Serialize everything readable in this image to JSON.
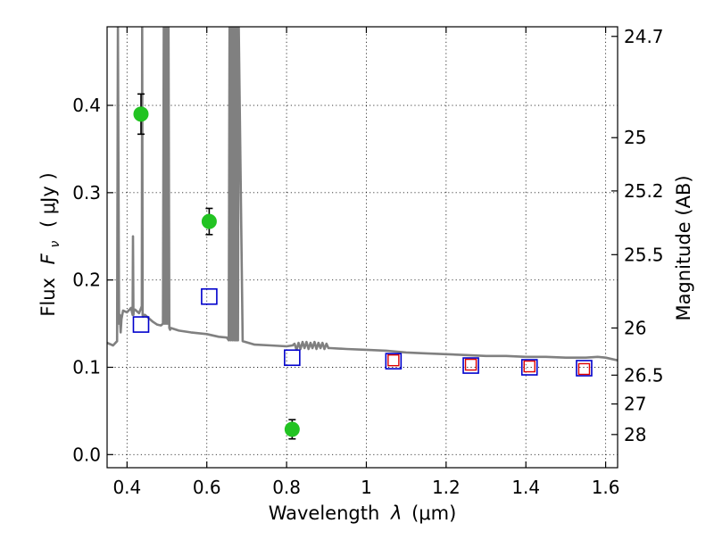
{
  "chart_data": {
    "type": "scatter",
    "xlabel_text": "Wavelength",
    "xlabel_symbol": "λ",
    "xlabel_unit": "(μm)",
    "ylabel_text": "Flux",
    "ylabel_symbol": "F",
    "ylabel_sub": "ν",
    "ylabel_unit": "( μJy )",
    "ylabel_right": "Magnitude (AB)",
    "xlim": [
      0.35,
      1.63
    ],
    "ylim": [
      -0.015,
      0.49
    ],
    "x_ticks": [
      0.4,
      0.6,
      0.8,
      1.0,
      1.2,
      1.4,
      1.6
    ],
    "x_tick_labels": [
      "0.4",
      "0.6",
      "0.8",
      "1",
      "1.2",
      "1.4",
      "1.6"
    ],
    "y_ticks": [
      0.0,
      0.1,
      0.2,
      0.3,
      0.4
    ],
    "y_tick_labels": [
      "0.0",
      "0.1",
      "0.2",
      "0.3",
      "0.4"
    ],
    "right_ticks": [
      {
        "label": "24.7",
        "flux": 0.479
      },
      {
        "label": "25",
        "flux": 0.363
      },
      {
        "label": "25.2",
        "flux": 0.302
      },
      {
        "label": "25.5",
        "flux": 0.229
      },
      {
        "label": "26",
        "flux": 0.145
      },
      {
        "label": "26.5",
        "flux": 0.091
      },
      {
        "label": "27",
        "flux": 0.058
      },
      {
        "label": "28",
        "flux": 0.023
      }
    ],
    "grid": true,
    "colors": {
      "observed": "#22c322",
      "model_blue": "#0000cc",
      "model_red": "#dd0000",
      "spectrum": "#808080",
      "errorbar": "#000000"
    },
    "series": [
      {
        "name": "observed",
        "marker": "circle",
        "points": [
          {
            "x": 0.435,
            "y": 0.39,
            "yerr": 0.023
          },
          {
            "x": 0.606,
            "y": 0.267,
            "yerr": 0.015
          },
          {
            "x": 0.814,
            "y": 0.029,
            "yerr": 0.011
          }
        ]
      },
      {
        "name": "model-blue",
        "marker": "square",
        "points": [
          {
            "x": 0.435,
            "y": 0.149
          },
          {
            "x": 0.606,
            "y": 0.181
          },
          {
            "x": 0.814,
            "y": 0.111
          },
          {
            "x": 1.068,
            "y": 0.107
          },
          {
            "x": 1.262,
            "y": 0.102
          },
          {
            "x": 1.409,
            "y": 0.1
          },
          {
            "x": 1.546,
            "y": 0.099
          }
        ]
      },
      {
        "name": "model-red",
        "marker": "square",
        "points": [
          {
            "x": 1.068,
            "y": 0.108
          },
          {
            "x": 1.262,
            "y": 0.103
          },
          {
            "x": 1.409,
            "y": 0.101
          },
          {
            "x": 1.546,
            "y": 0.098
          }
        ]
      },
      {
        "name": "spectrum",
        "type": "line",
        "x": [
          0.35,
          0.365,
          0.375,
          0.377,
          0.38,
          0.382,
          0.384,
          0.386,
          0.39,
          0.4,
          0.41,
          0.414,
          0.415,
          0.416,
          0.417,
          0.42,
          0.43,
          0.437,
          0.438,
          0.439,
          0.44,
          0.442,
          0.445,
          0.455,
          0.465,
          0.475,
          0.485,
          0.49,
          0.492,
          0.494,
          0.496,
          0.498,
          0.5,
          0.502,
          0.504,
          0.506,
          0.508,
          0.51,
          0.53,
          0.56,
          0.6,
          0.63,
          0.65,
          0.655,
          0.657,
          0.66,
          0.662,
          0.665,
          0.667,
          0.67,
          0.672,
          0.674,
          0.676,
          0.678,
          0.68,
          0.69,
          0.72,
          0.76,
          0.8,
          0.815,
          0.82,
          0.825,
          0.83,
          0.835,
          0.84,
          0.845,
          0.85,
          0.855,
          0.86,
          0.865,
          0.87,
          0.875,
          0.88,
          0.885,
          0.89,
          0.895,
          0.9,
          0.905,
          0.91,
          0.95,
          1.0,
          1.05,
          1.1,
          1.15,
          1.2,
          1.25,
          1.3,
          1.35,
          1.4,
          1.45,
          1.5,
          1.55,
          1.58,
          1.6,
          1.63
        ],
        "y": [
          0.128,
          0.125,
          0.13,
          0.49,
          0.15,
          0.16,
          0.14,
          0.155,
          0.165,
          0.163,
          0.168,
          0.16,
          0.25,
          0.16,
          0.165,
          0.166,
          0.162,
          0.17,
          0.49,
          0.16,
          0.158,
          0.16,
          0.16,
          0.156,
          0.152,
          0.149,
          0.148,
          0.15,
          0.49,
          0.15,
          0.49,
          0.15,
          0.49,
          0.15,
          0.49,
          0.145,
          0.143,
          0.145,
          0.142,
          0.14,
          0.138,
          0.135,
          0.134,
          0.131,
          0.49,
          0.131,
          0.49,
          0.131,
          0.49,
          0.131,
          0.49,
          0.131,
          0.49,
          0.131,
          0.49,
          0.13,
          0.126,
          0.125,
          0.124,
          0.125,
          0.127,
          0.12,
          0.128,
          0.121,
          0.129,
          0.122,
          0.129,
          0.121,
          0.128,
          0.122,
          0.129,
          0.121,
          0.128,
          0.122,
          0.128,
          0.121,
          0.127,
          0.122,
          0.122,
          0.121,
          0.12,
          0.119,
          0.117,
          0.116,
          0.115,
          0.114,
          0.113,
          0.113,
          0.112,
          0.112,
          0.111,
          0.111,
          0.112,
          0.111,
          0.108
        ]
      }
    ]
  }
}
